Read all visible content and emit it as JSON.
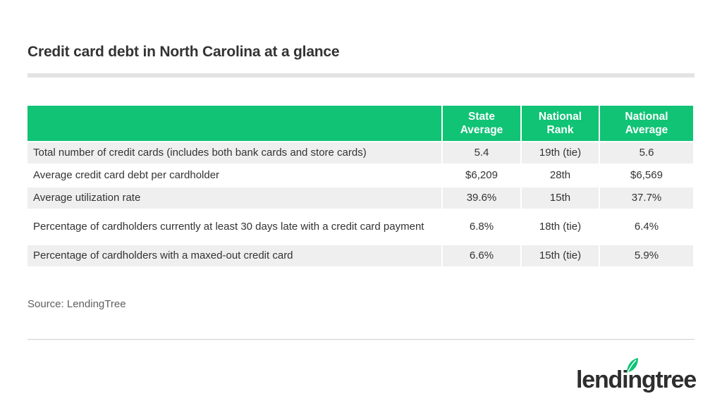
{
  "title": "Credit card debt in North Carolina at a glance",
  "table": {
    "headers": [
      "",
      "State Average",
      "National Rank",
      "National Average"
    ],
    "rows": [
      {
        "label": "Total number of credit cards (includes both bank cards and store cards)",
        "state_average": "5.4",
        "national_rank": "19th (tie)",
        "national_average": "5.6"
      },
      {
        "label": "Average credit card debt per cardholder",
        "state_average": "$6,209",
        "national_rank": "28th",
        "national_average": "$6,569"
      },
      {
        "label": "Average utilization rate",
        "state_average": "39.6%",
        "national_rank": "15th",
        "national_average": "37.7%"
      },
      {
        "label": "Percentage of cardholders currently at least 30 days late with a credit card payment",
        "state_average": "6.8%",
        "national_rank": "18th (tie)",
        "national_average": "6.4%"
      },
      {
        "label": "Percentage of cardholders with a maxed-out credit card",
        "state_average": "6.6%",
        "national_rank": "15th (tie)",
        "national_average": "5.9%"
      }
    ]
  },
  "source": "Source: LendingTree",
  "logo": {
    "text": "lendingtree",
    "icon": "leaf-icon",
    "brand_color": "#10c375"
  },
  "colors": {
    "header_bg": "#10c375",
    "row_shade": "#efefef",
    "text": "#333333"
  }
}
